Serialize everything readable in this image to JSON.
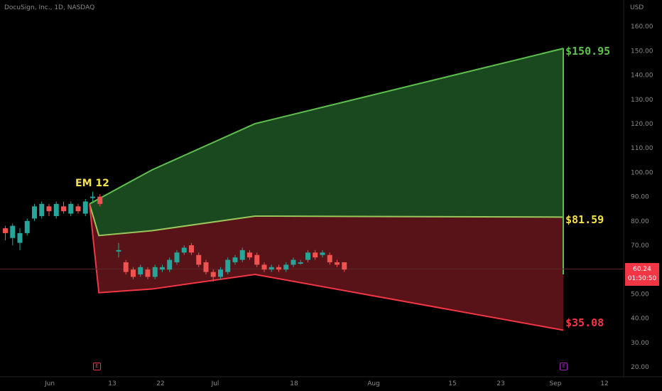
{
  "header": {
    "title": "DocuSign, Inc., 1D, NASDAQ",
    "currency": "USD"
  },
  "price_tag": {
    "price": "60.24",
    "countdown": "01:50:50"
  },
  "annotation": {
    "em_label": "EM 12"
  },
  "projection_labels": {
    "upper": "$150.95",
    "mid": "$81.59",
    "lower": "$35.08"
  },
  "event_markers": [
    {
      "label": "E",
      "color": "#f23645"
    },
    {
      "label": "E",
      "color": "#9c27b0"
    }
  ],
  "colors": {
    "up": "#26a69a",
    "down": "#ef5350",
    "upper_zone": "#1b4d22",
    "lower_zone": "#5c1418",
    "upper_line": "#5fbf4e",
    "lower_line": "#f23645",
    "mid_line": "#9ac65c",
    "em_label": "#f5e24a",
    "axis_text": "#8a8a8a"
  },
  "chart_data": {
    "type": "candlestick",
    "title": "DocuSign, Inc., 1D, NASDAQ",
    "ylabel": "USD",
    "ylim": [
      18,
      167
    ],
    "y_ticks": [
      "20.00",
      "30.00",
      "40.00",
      "50.00",
      "60.00",
      "70.00",
      "80.00",
      "90.00",
      "100.00",
      "110.00",
      "120.00",
      "130.00",
      "140.00",
      "150.00",
      "160.00"
    ],
    "x_ticks": [
      "Jun",
      "13",
      "22",
      "Jul",
      "18",
      "Aug",
      "15",
      "23",
      "Sep",
      "12"
    ],
    "candles": [
      {
        "o": 77,
        "c": 75,
        "h": 78,
        "l": 72
      },
      {
        "o": 73,
        "c": 78,
        "h": 79,
        "l": 70
      },
      {
        "o": 71,
        "c": 75,
        "h": 77,
        "l": 68
      },
      {
        "o": 75,
        "c": 80,
        "h": 81,
        "l": 74
      },
      {
        "o": 81,
        "c": 86,
        "h": 87,
        "l": 80
      },
      {
        "o": 82,
        "c": 87,
        "h": 88,
        "l": 81
      },
      {
        "o": 86,
        "c": 84,
        "h": 87,
        "l": 82
      },
      {
        "o": 82,
        "c": 87,
        "h": 88,
        "l": 81
      },
      {
        "o": 86,
        "c": 84,
        "h": 88,
        "l": 83
      },
      {
        "o": 83,
        "c": 87,
        "h": 88,
        "l": 82
      },
      {
        "o": 86,
        "c": 84,
        "h": 87,
        "l": 83
      },
      {
        "o": 83,
        "c": 88,
        "h": 89,
        "l": 82
      },
      {
        "o": 90,
        "c": 90,
        "h": 92,
        "l": 88
      },
      {
        "o": 90,
        "c": 87,
        "h": 91,
        "l": 86
      },
      {
        "o": 68,
        "c": 68,
        "h": 71,
        "l": 65
      },
      {
        "o": 63,
        "c": 59,
        "h": 64,
        "l": 58
      },
      {
        "o": 60,
        "c": 57,
        "h": 61,
        "l": 56
      },
      {
        "o": 58,
        "c": 61,
        "h": 62,
        "l": 57
      },
      {
        "o": 60,
        "c": 57,
        "h": 61,
        "l": 56
      },
      {
        "o": 57,
        "c": 61,
        "h": 62,
        "l": 56
      },
      {
        "o": 60,
        "c": 61,
        "h": 62,
        "l": 59
      },
      {
        "o": 60,
        "c": 64,
        "h": 65,
        "l": 59
      },
      {
        "o": 63,
        "c": 67,
        "h": 68,
        "l": 62
      },
      {
        "o": 67,
        "c": 69,
        "h": 70,
        "l": 66
      },
      {
        "o": 70,
        "c": 67,
        "h": 71,
        "l": 66
      },
      {
        "o": 66,
        "c": 62,
        "h": 67,
        "l": 61
      },
      {
        "o": 63,
        "c": 59,
        "h": 64,
        "l": 58
      },
      {
        "o": 59,
        "c": 57,
        "h": 60,
        "l": 55
      },
      {
        "o": 57,
        "c": 60,
        "h": 61,
        "l": 56
      },
      {
        "o": 59,
        "c": 64,
        "h": 65,
        "l": 58
      },
      {
        "o": 63,
        "c": 65,
        "h": 66,
        "l": 62
      },
      {
        "o": 64,
        "c": 68,
        "h": 69,
        "l": 63
      },
      {
        "o": 67,
        "c": 65,
        "h": 68,
        "l": 64
      },
      {
        "o": 66,
        "c": 62,
        "h": 67,
        "l": 61
      },
      {
        "o": 62,
        "c": 60,
        "h": 63,
        "l": 59
      },
      {
        "o": 60,
        "c": 61,
        "h": 62,
        "l": 59
      },
      {
        "o": 61,
        "c": 60,
        "h": 62,
        "l": 59
      },
      {
        "o": 60,
        "c": 62,
        "h": 63,
        "l": 59
      },
      {
        "o": 62,
        "c": 64,
        "h": 65,
        "l": 61
      },
      {
        "o": 63,
        "c": 63,
        "h": 64,
        "l": 62
      },
      {
        "o": 64,
        "c": 67,
        "h": 68,
        "l": 63
      },
      {
        "o": 67,
        "c": 65,
        "h": 68,
        "l": 64
      },
      {
        "o": 66,
        "c": 67,
        "h": 68,
        "l": 65
      },
      {
        "o": 66,
        "c": 63,
        "h": 67,
        "l": 62
      },
      {
        "o": 63,
        "c": 62,
        "h": 64,
        "l": 61
      },
      {
        "o": 63,
        "c": 60,
        "h": 63,
        "l": 59
      }
    ],
    "upper_line": [
      [
        0,
        87
      ],
      [
        1,
        101
      ],
      [
        2,
        120
      ],
      [
        3,
        150.95
      ]
    ],
    "mid_line": [
      [
        0,
        87
      ],
      [
        0.15,
        74
      ],
      [
        1,
        76
      ],
      [
        2,
        82
      ],
      [
        3,
        81.59
      ]
    ],
    "lower_line": [
      [
        0,
        87
      ],
      [
        0.15,
        50.5
      ],
      [
        1,
        52
      ],
      [
        2,
        58
      ],
      [
        3,
        35.08
      ]
    ],
    "current_price": 60.24
  }
}
